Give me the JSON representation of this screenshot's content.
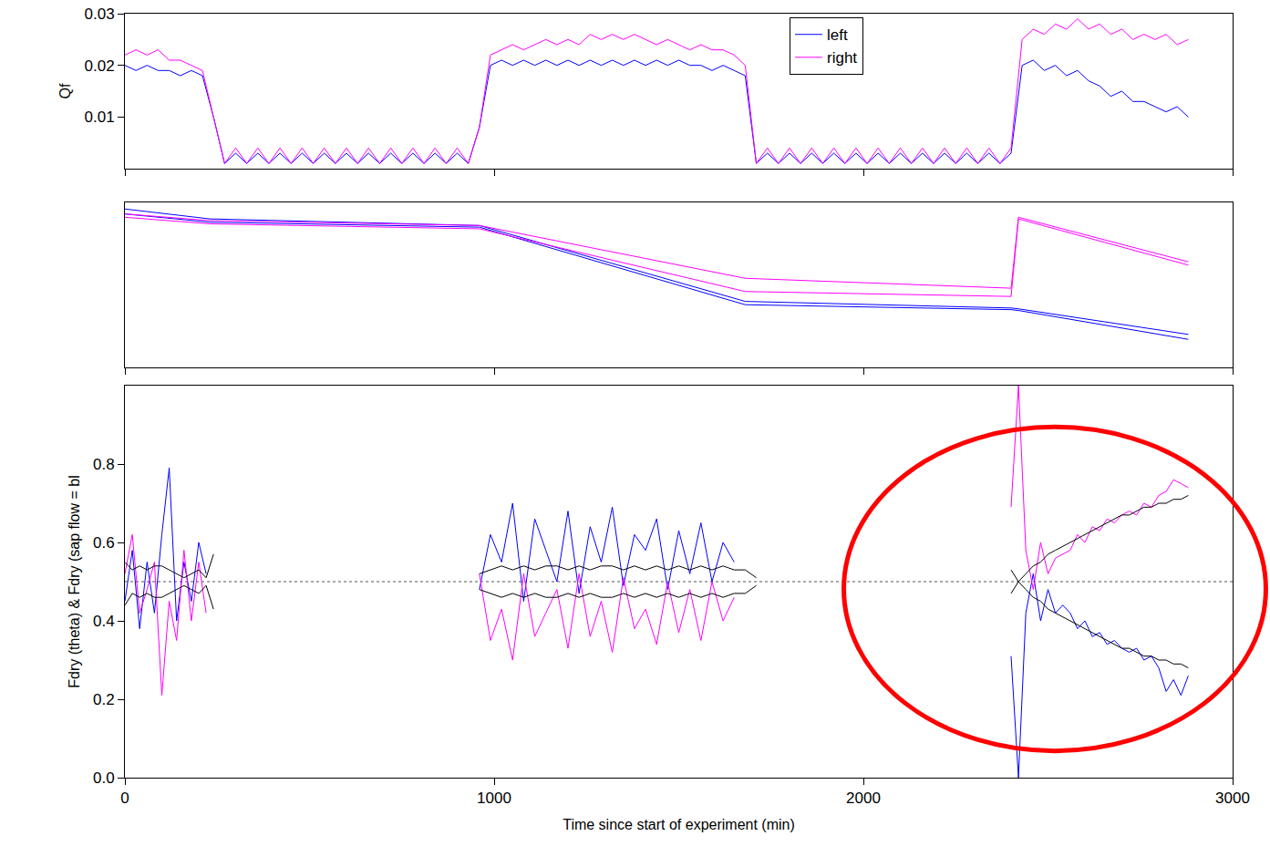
{
  "chart_data": [
    {
      "type": "line",
      "y_label": "Qf",
      "x": [
        0,
        30,
        60,
        90,
        120,
        150,
        180,
        210,
        240,
        270,
        300,
        330,
        360,
        390,
        420,
        450,
        480,
        510,
        540,
        570,
        600,
        630,
        660,
        690,
        720,
        750,
        780,
        810,
        840,
        870,
        900,
        930,
        960,
        990,
        1020,
        1050,
        1080,
        1110,
        1140,
        1170,
        1200,
        1230,
        1260,
        1290,
        1320,
        1350,
        1380,
        1410,
        1440,
        1470,
        1500,
        1530,
        1560,
        1590,
        1620,
        1650,
        1680,
        1710,
        1740,
        1770,
        1800,
        1830,
        1860,
        1890,
        1920,
        1950,
        1980,
        2010,
        2040,
        2070,
        2100,
        2130,
        2160,
        2190,
        2220,
        2250,
        2280,
        2310,
        2340,
        2370,
        2400,
        2430,
        2460,
        2490,
        2520,
        2550,
        2580,
        2610,
        2640,
        2670,
        2700,
        2730,
        2760,
        2790,
        2820,
        2850,
        2880
      ],
      "series": [
        {
          "name": "left",
          "color": "#0000ff",
          "values": [
            0.02,
            0.019,
            0.02,
            0.019,
            0.019,
            0.018,
            0.019,
            0.018,
            0.01,
            0.001,
            0.003,
            0.001,
            0.003,
            0.001,
            0.003,
            0.001,
            0.003,
            0.001,
            0.003,
            0.001,
            0.003,
            0.001,
            0.003,
            0.001,
            0.003,
            0.001,
            0.003,
            0.001,
            0.003,
            0.001,
            0.003,
            0.001,
            0.008,
            0.02,
            0.021,
            0.02,
            0.021,
            0.02,
            0.021,
            0.02,
            0.021,
            0.02,
            0.021,
            0.02,
            0.021,
            0.02,
            0.021,
            0.02,
            0.021,
            0.02,
            0.021,
            0.02,
            0.02,
            0.019,
            0.02,
            0.019,
            0.018,
            0.001,
            0.003,
            0.001,
            0.003,
            0.001,
            0.003,
            0.001,
            0.003,
            0.001,
            0.003,
            0.001,
            0.003,
            0.001,
            0.003,
            0.001,
            0.003,
            0.001,
            0.003,
            0.001,
            0.003,
            0.001,
            0.003,
            0.001,
            0.003,
            0.02,
            0.021,
            0.019,
            0.02,
            0.018,
            0.019,
            0.017,
            0.016,
            0.014,
            0.015,
            0.013,
            0.013,
            0.012,
            0.011,
            0.012,
            0.01
          ]
        },
        {
          "name": "right",
          "color": "#ff00ff",
          "values": [
            0.022,
            0.023,
            0.022,
            0.023,
            0.021,
            0.021,
            0.02,
            0.019,
            0.01,
            0.001,
            0.004,
            0.001,
            0.004,
            0.001,
            0.004,
            0.001,
            0.004,
            0.001,
            0.004,
            0.001,
            0.004,
            0.001,
            0.004,
            0.001,
            0.004,
            0.001,
            0.004,
            0.001,
            0.004,
            0.001,
            0.004,
            0.001,
            0.008,
            0.022,
            0.023,
            0.024,
            0.023,
            0.024,
            0.025,
            0.024,
            0.025,
            0.024,
            0.026,
            0.025,
            0.026,
            0.025,
            0.026,
            0.025,
            0.024,
            0.025,
            0.024,
            0.023,
            0.024,
            0.023,
            0.023,
            0.022,
            0.02,
            0.001,
            0.004,
            0.001,
            0.004,
            0.001,
            0.004,
            0.001,
            0.004,
            0.001,
            0.004,
            0.001,
            0.004,
            0.001,
            0.004,
            0.001,
            0.004,
            0.001,
            0.004,
            0.001,
            0.004,
            0.001,
            0.004,
            0.001,
            0.004,
            0.025,
            0.027,
            0.026,
            0.028,
            0.027,
            0.029,
            0.027,
            0.028,
            0.026,
            0.027,
            0.025,
            0.026,
            0.025,
            0.026,
            0.024,
            0.025
          ]
        }
      ],
      "xlim": [
        0,
        3000
      ],
      "xticks": [
        0,
        1000,
        2000,
        3000
      ],
      "ylim": [
        0,
        0.03
      ],
      "yticks": [
        0.01,
        0.02,
        0.03
      ],
      "tick_labels": "y",
      "legend": "top right"
    },
    {
      "type": "line",
      "x": [
        0,
        230,
        960,
        1680,
        2400,
        2420,
        2880
      ],
      "series": [
        {
          "color": "#0000ff",
          "values": [
            0.96,
            0.9,
            0.86,
            0.4,
            0.36,
            0.355,
            0.2
          ]
        },
        {
          "color": "#0000ff",
          "values": [
            0.93,
            0.88,
            0.85,
            0.38,
            0.35,
            0.345,
            0.17
          ]
        },
        {
          "color": "#ff00ff",
          "values": [
            0.93,
            0.89,
            0.86,
            0.54,
            0.48,
            0.91,
            0.64
          ]
        },
        {
          "color": "#ff00ff",
          "values": [
            0.91,
            0.87,
            0.84,
            0.46,
            0.43,
            0.9,
            0.62
          ]
        }
      ],
      "xlim": [
        0,
        3000
      ],
      "xticks": [
        0,
        1000,
        2000,
        3000
      ],
      "ylim": [
        0,
        1
      ],
      "tick_labels": false
    },
    {
      "type": "line",
      "x_label": "Time since start of experiment (min)",
      "y_label": "Fdry (theta) & Fdry (sap flow = bl",
      "x": [
        0,
        20,
        40,
        60,
        80,
        100,
        120,
        140,
        160,
        180,
        200,
        220,
        240,
        600,
        960,
        990,
        1020,
        1050,
        1080,
        1110,
        1140,
        1170,
        1200,
        1230,
        1260,
        1290,
        1320,
        1350,
        1380,
        1410,
        1440,
        1470,
        1500,
        1530,
        1560,
        1590,
        1620,
        1650,
        1680,
        1710,
        2000,
        2400,
        2420,
        2440,
        2460,
        2480,
        2500,
        2520,
        2540,
        2560,
        2580,
        2600,
        2620,
        2640,
        2660,
        2680,
        2700,
        2720,
        2740,
        2760,
        2780,
        2800,
        2820,
        2840,
        2860,
        2880
      ],
      "series": [
        {
          "color": "#0000ff",
          "values": [
            0.45,
            0.58,
            0.38,
            0.55,
            0.42,
            0.62,
            0.79,
            0.4,
            0.55,
            0.45,
            0.6,
            0.52,
            null,
            null,
            0.48,
            0.62,
            0.55,
            0.7,
            0.45,
            0.66,
            0.58,
            0.5,
            0.68,
            0.47,
            0.64,
            0.55,
            0.69,
            0.49,
            0.62,
            0.58,
            0.66,
            0.48,
            0.63,
            0.52,
            0.65,
            0.5,
            0.6,
            0.55,
            null,
            null,
            null,
            0.31,
            0.0,
            0.42,
            0.52,
            0.4,
            0.48,
            0.42,
            0.44,
            0.42,
            0.38,
            0.4,
            0.36,
            0.37,
            0.34,
            0.35,
            0.33,
            0.32,
            0.33,
            0.3,
            0.31,
            0.28,
            0.22,
            0.25,
            0.21,
            0.26
          ]
        },
        {
          "color": "#ff00ff",
          "values": [
            0.52,
            0.62,
            0.42,
            0.48,
            0.55,
            0.21,
            0.45,
            0.35,
            0.58,
            0.4,
            0.55,
            0.42,
            null,
            null,
            0.52,
            0.35,
            0.43,
            0.3,
            0.52,
            0.36,
            0.42,
            0.48,
            0.33,
            0.52,
            0.36,
            0.45,
            0.32,
            0.51,
            0.38,
            0.43,
            0.34,
            0.5,
            0.37,
            0.48,
            0.35,
            0.5,
            0.4,
            0.46,
            null,
            null,
            null,
            0.69,
            1.0,
            0.58,
            0.48,
            0.6,
            0.52,
            0.56,
            0.57,
            0.58,
            0.62,
            0.6,
            0.64,
            0.63,
            0.66,
            0.65,
            0.67,
            0.68,
            0.67,
            0.7,
            0.69,
            0.72,
            0.73,
            0.76,
            0.75,
            0.74
          ]
        },
        {
          "color": "#000000",
          "values": [
            0.55,
            0.53,
            0.54,
            0.53,
            0.54,
            0.54,
            0.53,
            0.52,
            0.51,
            0.52,
            0.53,
            0.51,
            0.57,
            null,
            0.52,
            0.53,
            0.54,
            0.53,
            0.54,
            0.53,
            0.54,
            0.54,
            0.53,
            0.54,
            0.53,
            0.54,
            0.54,
            0.53,
            0.54,
            0.53,
            0.54,
            0.53,
            0.54,
            0.53,
            0.54,
            0.53,
            0.54,
            0.53,
            0.53,
            0.51,
            null,
            0.47,
            0.5,
            0.52,
            0.54,
            0.55,
            0.57,
            0.58,
            0.59,
            0.6,
            0.61,
            0.62,
            0.63,
            0.64,
            0.65,
            0.66,
            0.67,
            0.67,
            0.68,
            0.69,
            0.69,
            0.7,
            0.7,
            0.71,
            0.71,
            0.72
          ]
        },
        {
          "color": "#000000",
          "values": [
            0.44,
            0.47,
            0.46,
            0.47,
            0.46,
            0.46,
            0.47,
            0.48,
            0.49,
            0.48,
            0.47,
            0.49,
            0.43,
            null,
            0.48,
            0.47,
            0.46,
            0.47,
            0.46,
            0.47,
            0.46,
            0.46,
            0.47,
            0.46,
            0.47,
            0.46,
            0.46,
            0.47,
            0.46,
            0.47,
            0.46,
            0.47,
            0.46,
            0.47,
            0.46,
            0.47,
            0.46,
            0.47,
            0.47,
            0.49,
            null,
            0.53,
            0.5,
            0.48,
            0.46,
            0.45,
            0.43,
            0.42,
            0.41,
            0.4,
            0.39,
            0.38,
            0.37,
            0.36,
            0.35,
            0.34,
            0.33,
            0.33,
            0.32,
            0.31,
            0.31,
            0.3,
            0.3,
            0.29,
            0.29,
            0.28
          ]
        }
      ],
      "reference_line": 0.5,
      "xlim": [
        0,
        3000
      ],
      "xticks": [
        0,
        1000,
        2000,
        3000
      ],
      "ylim": [
        0,
        1.0
      ],
      "yticks": [
        {
          "value": 0,
          "label": "0.0"
        },
        {
          "value": 0.2,
          "label": "0.2"
        },
        {
          "value": 0.4,
          "label": "0.4"
        },
        {
          "value": 0.6,
          "label": "0.6"
        },
        {
          "value": 0.8,
          "label": "0.8"
        }
      ]
    }
  ]
}
